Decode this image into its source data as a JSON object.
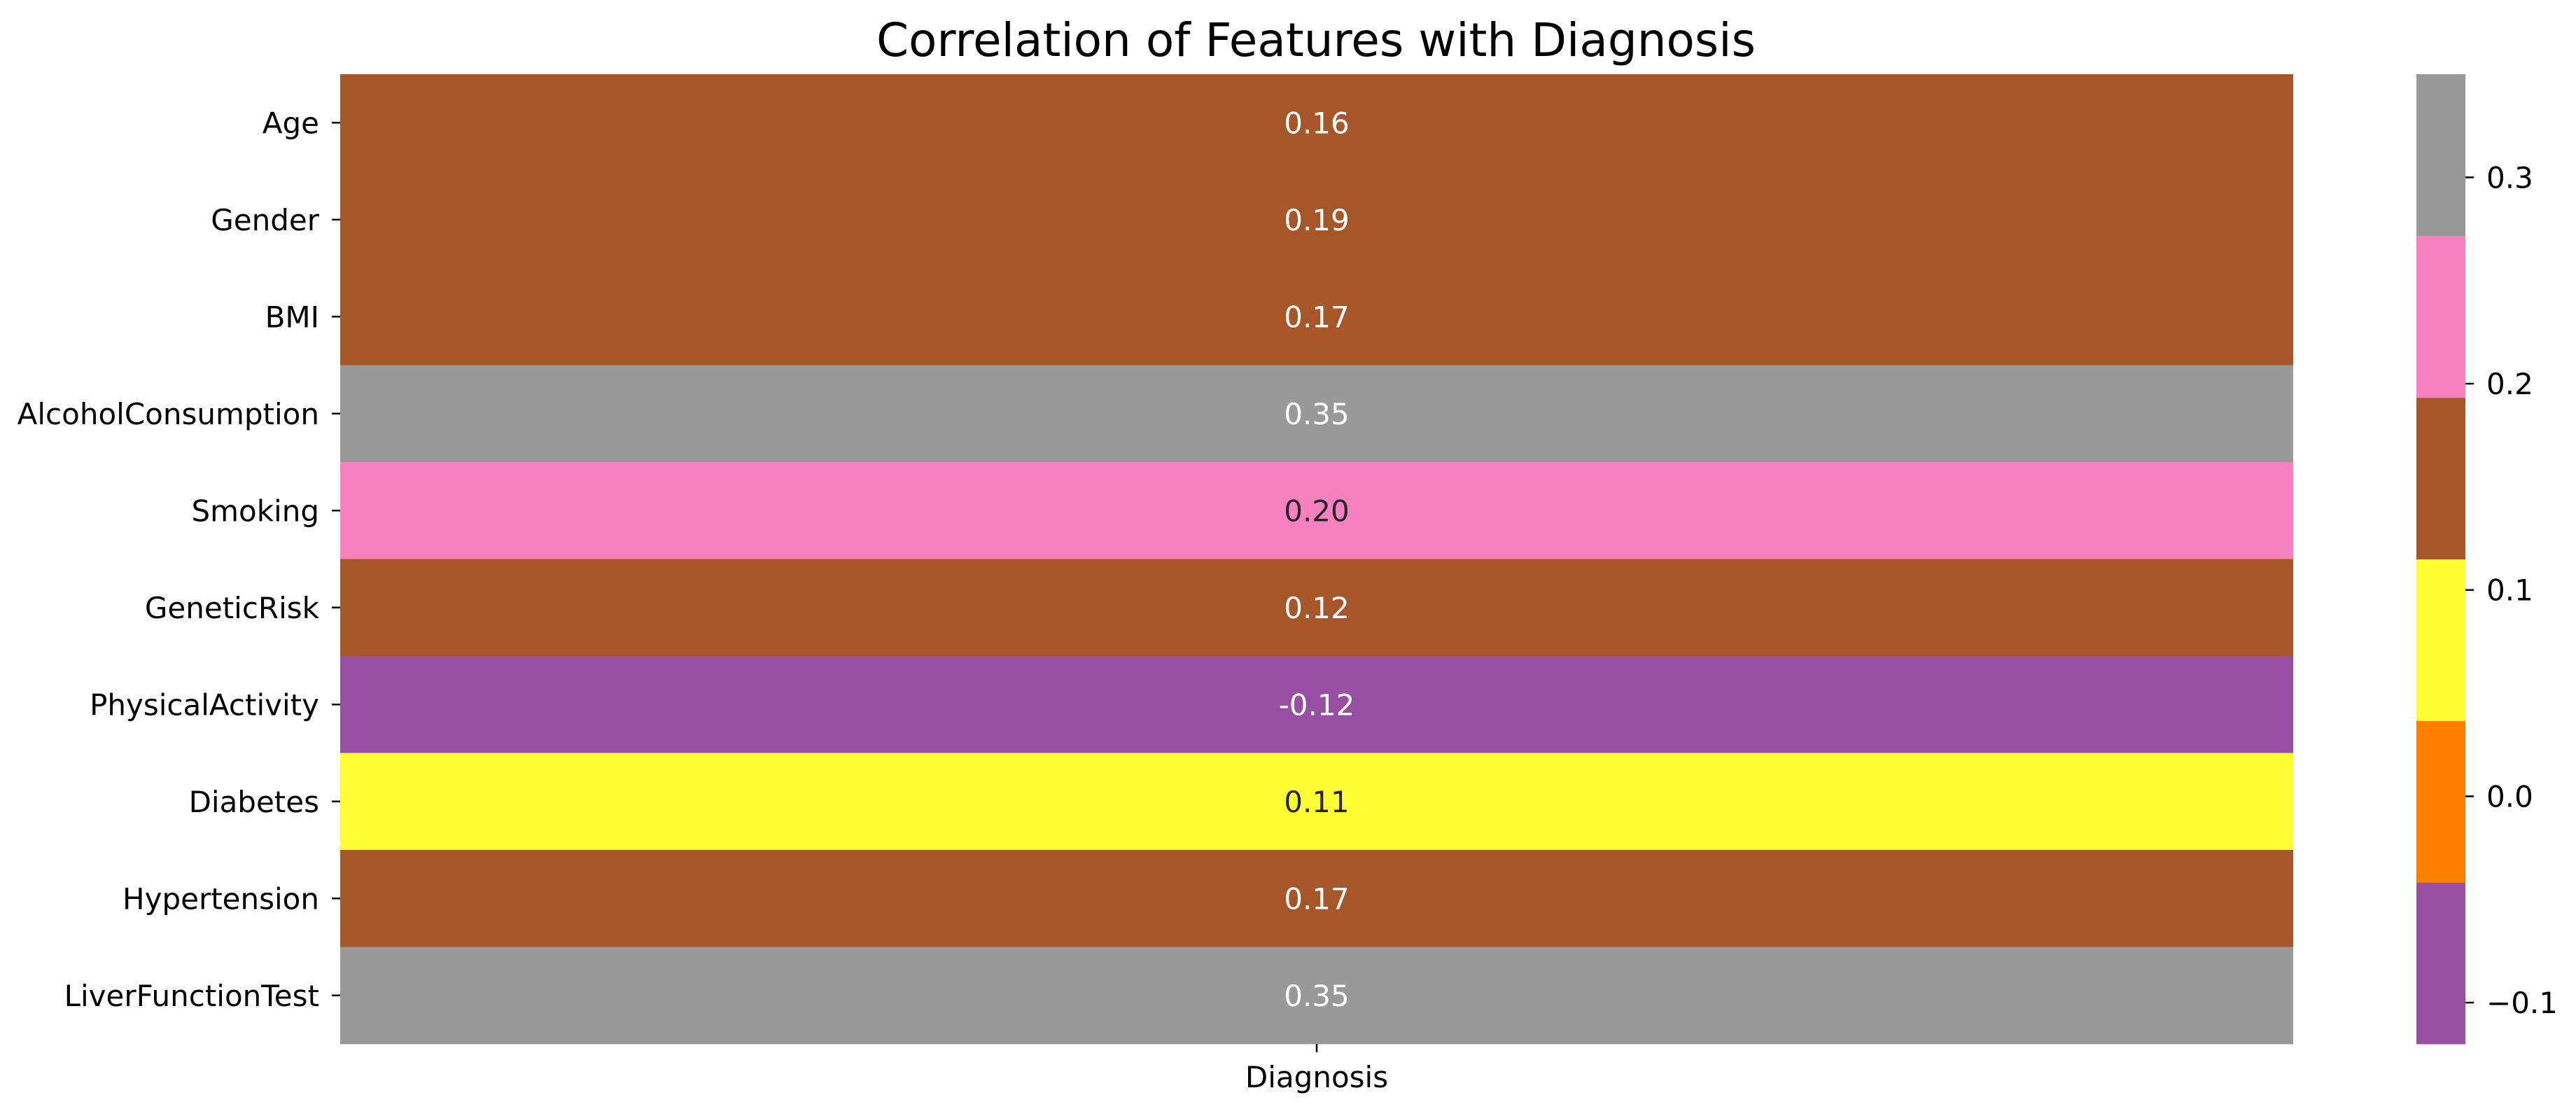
{
  "chart_data": {
    "type": "heatmap",
    "title": "Correlation of Features with Diagnosis",
    "x_categories": [
      "Diagnosis"
    ],
    "y_categories": [
      "Age",
      "Gender",
      "BMI",
      "AlcoholConsumption",
      "Smoking",
      "GeneticRisk",
      "PhysicalActivity",
      "Diabetes",
      "Hypertension",
      "LiverFunctionTest"
    ],
    "values": [
      0.16,
      0.19,
      0.17,
      0.35,
      0.2,
      0.12,
      -0.12,
      0.11,
      0.17,
      0.35
    ],
    "value_labels": [
      "0.16",
      "0.19",
      "0.17",
      "0.35",
      "0.20",
      "0.12",
      "-0.12",
      "0.11",
      "0.17",
      "0.35"
    ],
    "colorbar": {
      "range": [
        -0.12,
        0.35
      ],
      "bins": [
        {
          "from": -0.12,
          "to": -0.0417,
          "color": "#984EA3"
        },
        {
          "from": -0.0417,
          "to": 0.0367,
          "color": "#FF7F00"
        },
        {
          "from": 0.0367,
          "to": 0.115,
          "color": "#FFFF33"
        },
        {
          "from": 0.115,
          "to": 0.1933,
          "color": "#A65628"
        },
        {
          "from": 0.1933,
          "to": 0.2717,
          "color": "#F781BF"
        },
        {
          "from": 0.2717,
          "to": 0.35,
          "color": "#999999"
        }
      ],
      "ticks": [
        -0.1,
        0.0,
        0.1,
        0.2,
        0.3
      ],
      "tick_labels": [
        "−0.1",
        "0.0",
        "0.1",
        "0.2",
        "0.3"
      ]
    },
    "annotation_text_colors": {
      "light": "#ffffff",
      "dark": "#262626"
    }
  }
}
